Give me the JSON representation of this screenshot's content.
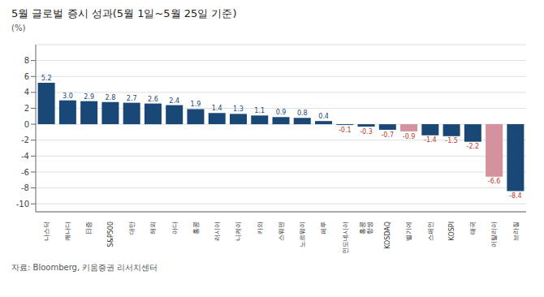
{
  "chart_data": {
    "type": "bar",
    "title": "5월 글로벌 증시 성과(5월 1일~5월 25일 기준)",
    "ylabel": "(%)",
    "annotations": [
      "자료: Bloomberg, 키움증권 리서치센터"
    ],
    "categories": [
      "나스닥",
      "캐나다",
      "日증",
      "S&P500",
      "대만",
      "해외",
      "아다",
      "홍콩",
      "러시아",
      "니케이",
      "카와",
      "스웨덴",
      "노르웨이",
      "페루",
      "인도네시아",
      "홍콩\n항셍",
      "KOSDAQ",
      "벨기에",
      "스페인",
      "KOSPI",
      "태국",
      "이탈리아",
      "브라질"
    ],
    "values": [
      5.2,
      3.0,
      2.9,
      2.8,
      2.7,
      2.6,
      2.4,
      1.9,
      1.4,
      1.3,
      1.1,
      0.9,
      0.8,
      0.4,
      -0.1,
      -0.3,
      -0.7,
      -0.9,
      -1.4,
      -1.5,
      -2.2,
      -6.6,
      -8.4
    ],
    "value_labels": [
      "5.2",
      "3.0",
      "2.9",
      "2.8",
      "2.7",
      "2.6",
      "2.4",
      "1.9",
      "1.4",
      "1.3",
      "1.1",
      "0.9",
      "0.8",
      "0.4",
      "-0.1",
      "-0.3",
      "-0.7",
      "-0.9",
      "-1.4",
      "-1.5",
      "-2.2",
      "-6.6",
      "-8.4"
    ],
    "colors": [
      "#1a4876",
      "#1a4876",
      "#1a4876",
      "#1a4876",
      "#1a4876",
      "#1a4876",
      "#1a4876",
      "#1a4876",
      "#1a4876",
      "#1a4876",
      "#1a4876",
      "#1a4876",
      "#1a4876",
      "#1a4876",
      "#1a4876",
      "#1a4876",
      "#1a4876",
      "#d4919e",
      "#1a4876",
      "#1a4876",
      "#1a4876",
      "#d4919e",
      "#1a4876"
    ],
    "ylim": [
      -11,
      10
    ],
    "yticks": [
      -10,
      -8,
      -6,
      -4,
      -2,
      0,
      2,
      4,
      6,
      8
    ],
    "grid": true,
    "data_labels": true
  }
}
